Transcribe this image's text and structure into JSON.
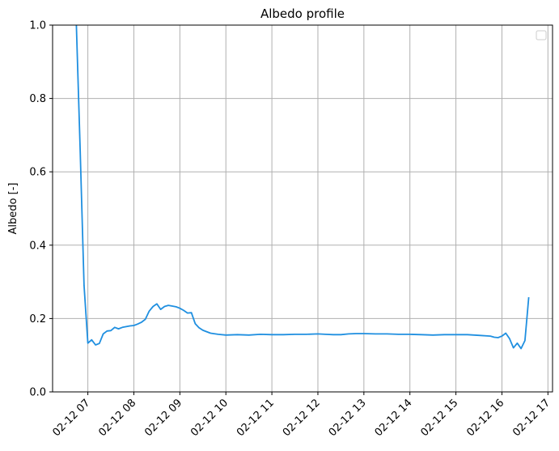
{
  "chart_data": {
    "type": "line",
    "title": "Albedo profile",
    "xlabel": "",
    "ylabel": "Albedo [-]",
    "xlim": [
      "02-12 06:14",
      "02-12 17:06"
    ],
    "ylim": [
      0,
      1.0
    ],
    "grid": true,
    "legend": "top-right, empty",
    "x_ticks": [
      "02-12 07",
      "02-12 08",
      "02-12 09",
      "02-12 10",
      "02-12 11",
      "02-12 12",
      "02-12 13",
      "02-12 14",
      "02-12 15",
      "02-12 16",
      "02-12 17"
    ],
    "y_ticks": [
      "0.0",
      "0.2",
      "0.4",
      "0.6",
      "0.8",
      "1.0"
    ],
    "series": [
      {
        "color": "#1f8fe0",
        "x": [
          "02-12 06:45",
          "02-12 06:50",
          "02-12 06:55",
          "02-12 07:00",
          "02-12 07:05",
          "02-12 07:10",
          "02-12 07:15",
          "02-12 07:20",
          "02-12 07:25",
          "02-12 07:30",
          "02-12 07:35",
          "02-12 07:40",
          "02-12 07:45",
          "02-12 07:50",
          "02-12 07:55",
          "02-12 08:00",
          "02-12 08:05",
          "02-12 08:10",
          "02-12 08:15",
          "02-12 08:20",
          "02-12 08:25",
          "02-12 08:30",
          "02-12 08:35",
          "02-12 08:40",
          "02-12 08:45",
          "02-12 08:50",
          "02-12 08:55",
          "02-12 09:00",
          "02-12 09:05",
          "02-12 09:10",
          "02-12 09:15",
          "02-12 09:20",
          "02-12 09:25",
          "02-12 09:30",
          "02-12 09:40",
          "02-12 09:50",
          "02-12 10:00",
          "02-12 10:15",
          "02-12 10:30",
          "02-12 10:45",
          "02-12 11:00",
          "02-12 11:15",
          "02-12 11:30",
          "02-12 11:45",
          "02-12 12:00",
          "02-12 12:10",
          "02-12 12:20",
          "02-12 12:30",
          "02-12 12:40",
          "02-12 12:50",
          "02-12 13:00",
          "02-12 13:15",
          "02-12 13:30",
          "02-12 13:45",
          "02-12 14:00",
          "02-12 14:15",
          "02-12 14:30",
          "02-12 14:45",
          "02-12 15:00",
          "02-12 15:15",
          "02-12 15:30",
          "02-12 15:45",
          "02-12 15:50",
          "02-12 15:55",
          "02-12 16:00",
          "02-12 16:05",
          "02-12 16:10",
          "02-12 16:15",
          "02-12 16:20",
          "02-12 16:25",
          "02-12 16:30",
          "02-12 16:35"
        ],
        "y": [
          1.0,
          0.66,
          0.29,
          0.133,
          0.142,
          0.128,
          0.132,
          0.158,
          0.166,
          0.167,
          0.176,
          0.172,
          0.176,
          0.178,
          0.18,
          0.181,
          0.185,
          0.19,
          0.198,
          0.22,
          0.233,
          0.24,
          0.225,
          0.233,
          0.236,
          0.234,
          0.232,
          0.228,
          0.222,
          0.215,
          0.216,
          0.186,
          0.175,
          0.168,
          0.16,
          0.157,
          0.155,
          0.156,
          0.155,
          0.157,
          0.156,
          0.156,
          0.157,
          0.157,
          0.158,
          0.157,
          0.156,
          0.156,
          0.158,
          0.159,
          0.159,
          0.158,
          0.158,
          0.157,
          0.157,
          0.156,
          0.155,
          0.156,
          0.156,
          0.156,
          0.154,
          0.152,
          0.149,
          0.148,
          0.152,
          0.16,
          0.145,
          0.12,
          0.133,
          0.118,
          0.14,
          0.258
        ]
      }
    ]
  }
}
